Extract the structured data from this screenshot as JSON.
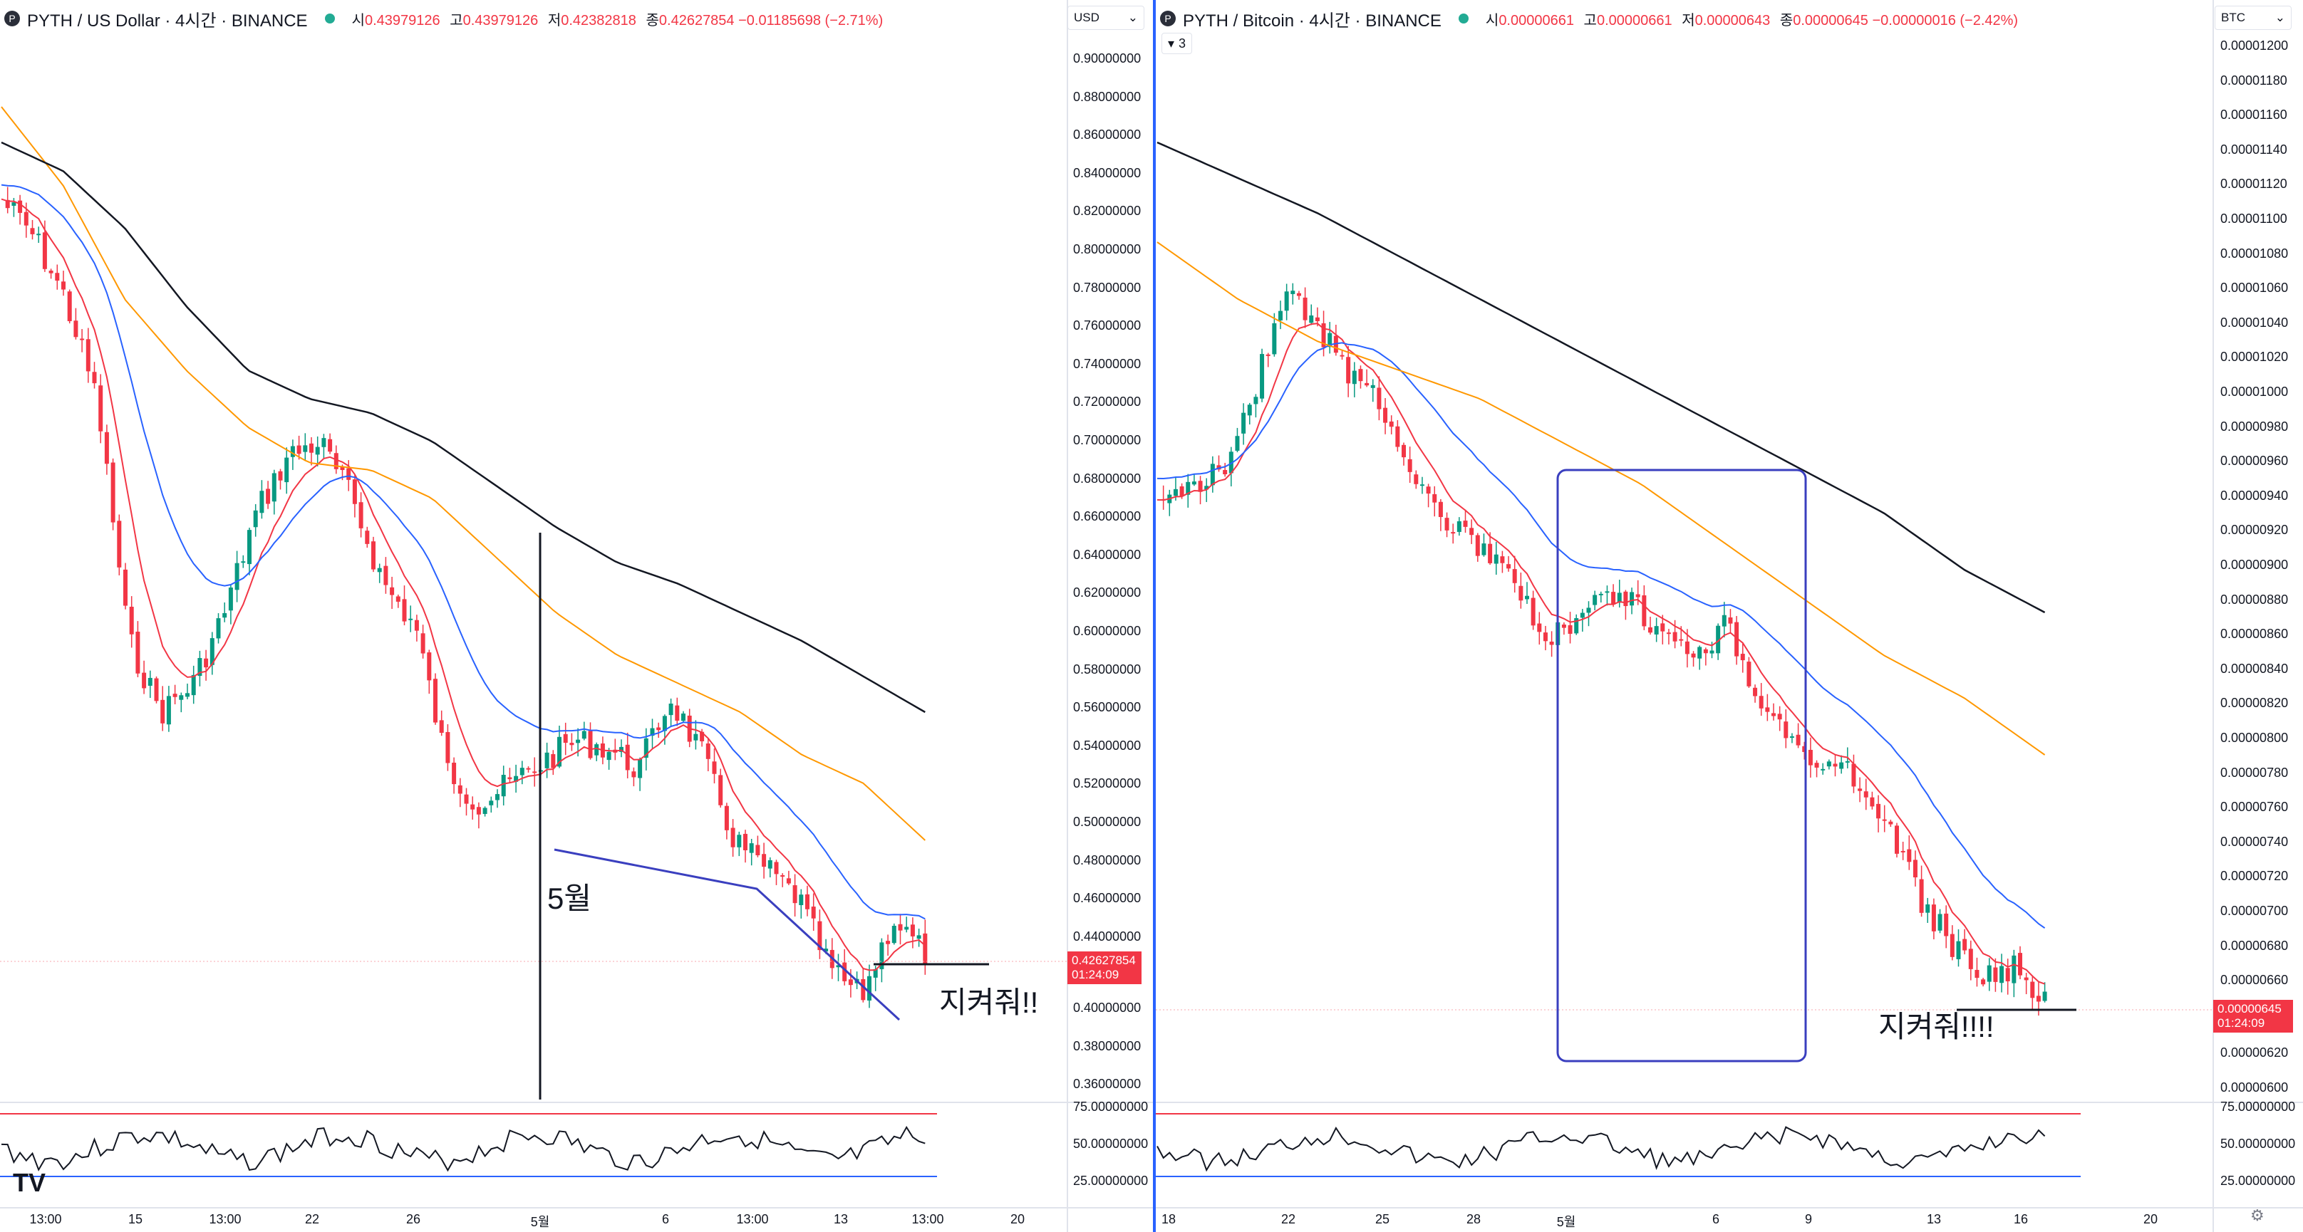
{
  "left": {
    "symbol": "PYTH / US Dollar · 4시간 · BINANCE",
    "logo": "P",
    "ohlc": {
      "o_k": "시",
      "o": "0.43979126",
      "h_k": "고",
      "h": "0.43979126",
      "l_k": "저",
      "l": "0.42382818",
      "c_k": "종",
      "c": "0.42627854",
      "chg": "−0.01185698 (−2.71%)"
    },
    "currency": "USD",
    "price_labels": [
      "0.90000000",
      "0.88000000",
      "0.86000000",
      "0.84000000",
      "0.82000000",
      "0.80000000",
      "0.78000000",
      "0.76000000",
      "0.74000000",
      "0.72000000",
      "0.70000000",
      "0.68000000",
      "0.66000000",
      "0.64000000",
      "0.62000000",
      "0.60000000",
      "0.58000000",
      "0.56000000",
      "0.54000000",
      "0.52000000",
      "0.50000000",
      "0.48000000",
      "0.46000000",
      "0.44000000",
      "0.40000000",
      "0.38000000",
      "0.36000000"
    ],
    "last_price": "0.42627854",
    "countdown": "01:24:09",
    "rsi_labels": [
      "75.00000000",
      "50.00000000",
      "25.00000000"
    ],
    "time_labels": [
      "13:00",
      "15",
      "13:00",
      "22",
      "26",
      "5월",
      "6",
      "13:00",
      "13",
      "13:00",
      "20"
    ],
    "annotation_month": "5월",
    "annotation_hold": "지켜줘!!"
  },
  "right": {
    "symbol": "PYTH / Bitcoin · 4시간 · BINANCE",
    "logo": "P",
    "ohlc": {
      "o_k": "시",
      "o": "0.00000661",
      "h_k": "고",
      "h": "0.00000661",
      "l_k": "저",
      "l": "0.00000643",
      "c_k": "종",
      "c": "0.00000645",
      "chg": "−0.00000016 (−2.42%)"
    },
    "indicator_count": "3",
    "currency": "BTC",
    "price_labels": [
      "0.00001200",
      "0.00001180",
      "0.00001160",
      "0.00001140",
      "0.00001120",
      "0.00001100",
      "0.00001080",
      "0.00001060",
      "0.00001040",
      "0.00001020",
      "0.00001000",
      "0.00000980",
      "0.00000960",
      "0.00000940",
      "0.00000920",
      "0.00000900",
      "0.00000880",
      "0.00000860",
      "0.00000840",
      "0.00000820",
      "0.00000800",
      "0.00000780",
      "0.00000760",
      "0.00000740",
      "0.00000720",
      "0.00000700",
      "0.00000680",
      "0.00000660",
      "0.00000620",
      "0.00000600"
    ],
    "last_price": "0.00000645",
    "countdown": "01:24:09",
    "rsi_labels": [
      "75.00000000",
      "50.00000000",
      "25.00000000"
    ],
    "time_labels": [
      "18",
      "22",
      "25",
      "28",
      "5월",
      "6",
      "9",
      "13",
      "16",
      "20"
    ],
    "annotation_hold": "지켜줘!!!!"
  },
  "icons": {
    "tradingview": "TV",
    "settings": "⚙",
    "dropdown": "▾",
    "chevron": "⌄"
  },
  "colors": {
    "up": "#089981",
    "down": "#f23645",
    "ema_red": "#f23645",
    "ema_blue": "#2962ff",
    "ema_orange": "#ff9800",
    "ema_black": "#131722",
    "rsi_line": "#131722",
    "rsi_upper": "#f23645",
    "rsi_lower": "#2962ff",
    "annotation_blue": "#3a3fbf"
  }
}
